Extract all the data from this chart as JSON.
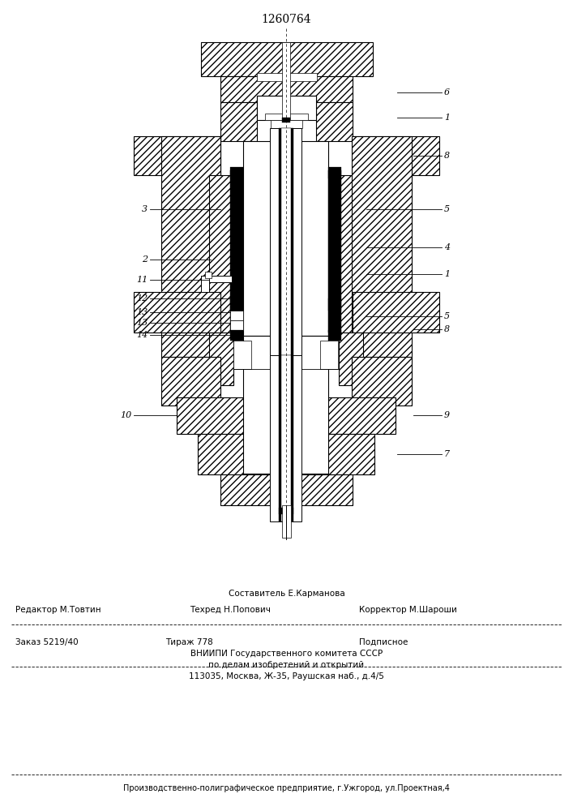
{
  "patent_number": "1260764",
  "line1_label": "Составитель Е.Карманова",
  "editor_label": "Редактор М.Товтин",
  "techred_label": "Техред Н.Попович",
  "corrector_label": "Корректор М.Шароши",
  "order_label": "Заказ 5219/40",
  "tirazh_label": "Тираж 778",
  "podpisnoe_label": "Подписное",
  "vniipi_line1": "ВНИИПИ Государственного комитета СССР",
  "vniipi_line2": "по делам изобретений и открытий",
  "vniipi_line3": "113035, Москва, Ж-35, Раушская наб., д.4/5",
  "production_line": "Производственно-полиграфическое предприятие, г.Ужгород, ул.Проектная,4"
}
